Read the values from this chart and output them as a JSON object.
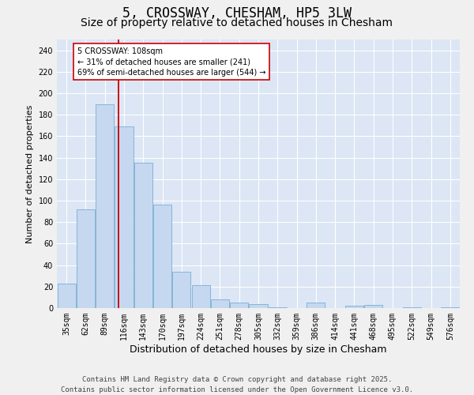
{
  "title1": "5, CROSSWAY, CHESHAM, HP5 3LW",
  "title2": "Size of property relative to detached houses in Chesham",
  "xlabel": "Distribution of detached houses by size in Chesham",
  "ylabel": "Number of detached properties",
  "categories": [
    "35sqm",
    "62sqm",
    "89sqm",
    "116sqm",
    "143sqm",
    "170sqm",
    "197sqm",
    "224sqm",
    "251sqm",
    "278sqm",
    "305sqm",
    "332sqm",
    "359sqm",
    "386sqm",
    "414sqm",
    "441sqm",
    "468sqm",
    "495sqm",
    "522sqm",
    "549sqm",
    "576sqm"
  ],
  "values": [
    23,
    92,
    190,
    169,
    135,
    96,
    34,
    21,
    8,
    5,
    4,
    1,
    0,
    5,
    0,
    2,
    3,
    0,
    1,
    0,
    1
  ],
  "bar_color": "#c5d8f0",
  "bar_edge_color": "#7aaed4",
  "vline_color": "#cc0000",
  "annotation_text": "5 CROSSWAY: 108sqm\n← 31% of detached houses are smaller (241)\n69% of semi-detached houses are larger (544) →",
  "annotation_box_color": "#ffffff",
  "annotation_box_edge": "#cc0000",
  "ylim": [
    0,
    250
  ],
  "yticks": [
    0,
    20,
    40,
    60,
    80,
    100,
    120,
    140,
    160,
    180,
    200,
    220,
    240
  ],
  "fig_bg_color": "#f0f0f0",
  "plot_bg_color": "#dce6f5",
  "grid_color": "#ffffff",
  "footer": "Contains HM Land Registry data © Crown copyright and database right 2025.\nContains public sector information licensed under the Open Government Licence v3.0.",
  "title1_fontsize": 12,
  "title2_fontsize": 10,
  "xlabel_fontsize": 9,
  "ylabel_fontsize": 8,
  "tick_fontsize": 7,
  "annotation_fontsize": 7,
  "footer_fontsize": 6.5
}
